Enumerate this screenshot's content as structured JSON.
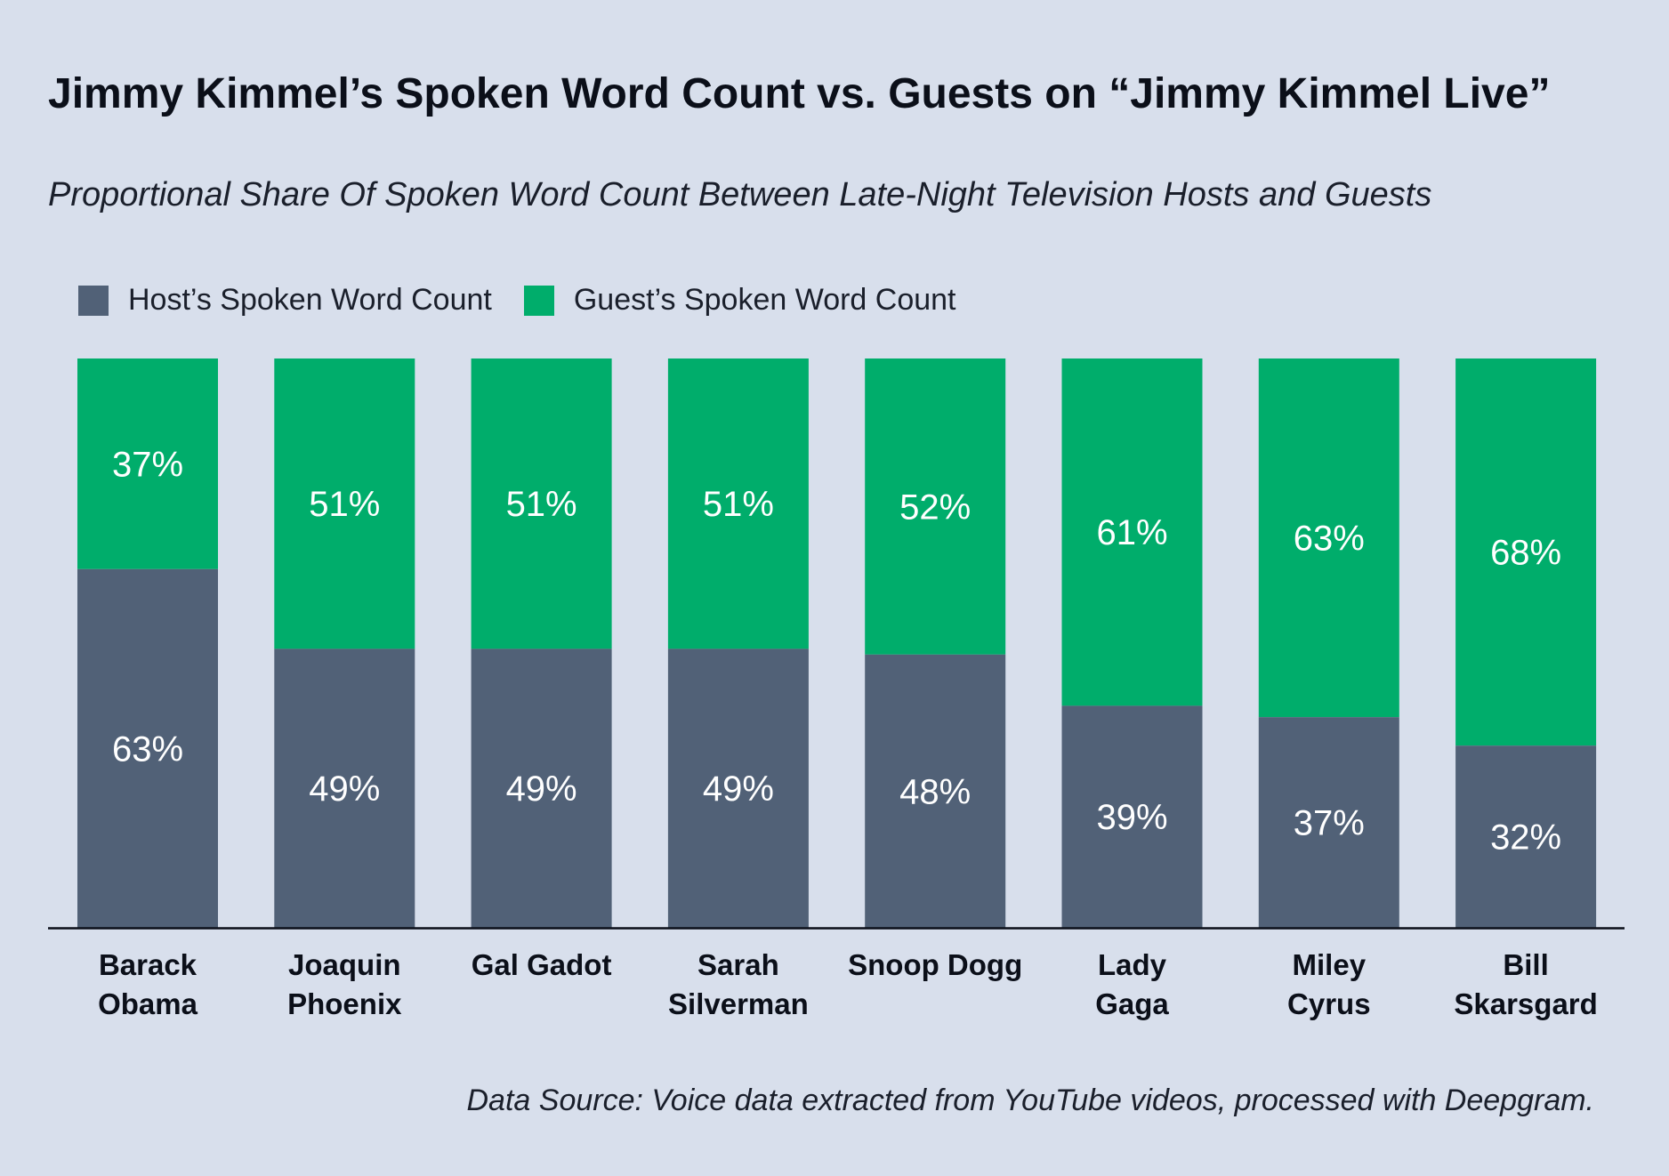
{
  "title": "Jimmy Kimmel’s Spoken Word Count vs. Guests on “Jimmy Kimmel Live”",
  "subtitle": "Proportional Share Of Spoken Word Count Between Late-Night Television Hosts and Guests",
  "legend": {
    "host_label": "Host’s Spoken Word Count",
    "guest_label": "Guest’s Spoken Word Count"
  },
  "source": "Data Source: Voice data extracted from YouTube videos, processed with Deepgram.",
  "colors": {
    "host": "#516177",
    "guest": "#00ad6b",
    "background": "#d8dfec"
  },
  "chart_data": {
    "type": "bar",
    "stacked": true,
    "categories": [
      [
        "Barack",
        "Obama"
      ],
      [
        "Joaquin",
        "Phoenix"
      ],
      [
        "Gal Gadot"
      ],
      [
        "Sarah",
        "Silverman"
      ],
      [
        "Snoop Dogg"
      ],
      [
        "Lady",
        "Gaga"
      ],
      [
        "Miley",
        "Cyrus"
      ],
      [
        "Bill",
        "Skarsgard"
      ]
    ],
    "series": [
      {
        "name": "Host’s Spoken Word Count",
        "values": [
          63,
          49,
          49,
          49,
          48,
          39,
          37,
          32
        ]
      },
      {
        "name": "Guest’s Spoken Word Count",
        "values": [
          37,
          51,
          51,
          51,
          52,
          61,
          63,
          68
        ]
      }
    ],
    "value_suffix": "%",
    "ylim": [
      0,
      100
    ],
    "grid": false,
    "legend_position": "top-left"
  }
}
